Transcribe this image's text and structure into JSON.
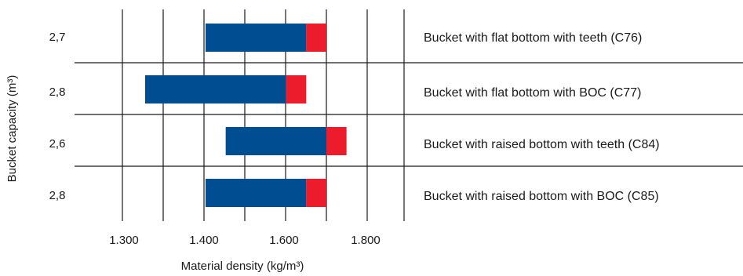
{
  "chart_data": {
    "type": "bar",
    "orientation": "horizontal",
    "stacked": true,
    "xlabel": "Material density (kg/m³)",
    "ylabel": "Bucket capacity (m³)",
    "x_ticks": [
      "1.300",
      "1.400",
      "1.600",
      "1.800"
    ],
    "grid": true,
    "rows": [
      {
        "capacity": "2,7",
        "description": "Bucket with flat bottom with teeth (C76)",
        "blue": [
          1400,
          1650
        ],
        "red": [
          1650,
          1700
        ]
      },
      {
        "capacity": "2,8",
        "description": "Bucket with flat bottom with BOC (C77)",
        "blue": [
          1250,
          1600
        ],
        "red": [
          1600,
          1650
        ]
      },
      {
        "capacity": "2,6",
        "description": "Bucket with raised bottom with teeth (C84)",
        "blue": [
          1450,
          1700
        ],
        "red": [
          1700,
          1750
        ]
      },
      {
        "capacity": "2,8",
        "description": "Bucket with raised bottom with BOC (C85)",
        "blue": [
          1400,
          1650
        ],
        "red": [
          1650,
          1700
        ]
      }
    ],
    "colors": {
      "blue": "#004d91",
      "red": "#ec1c2d",
      "grid": "#1a1a1a"
    }
  }
}
